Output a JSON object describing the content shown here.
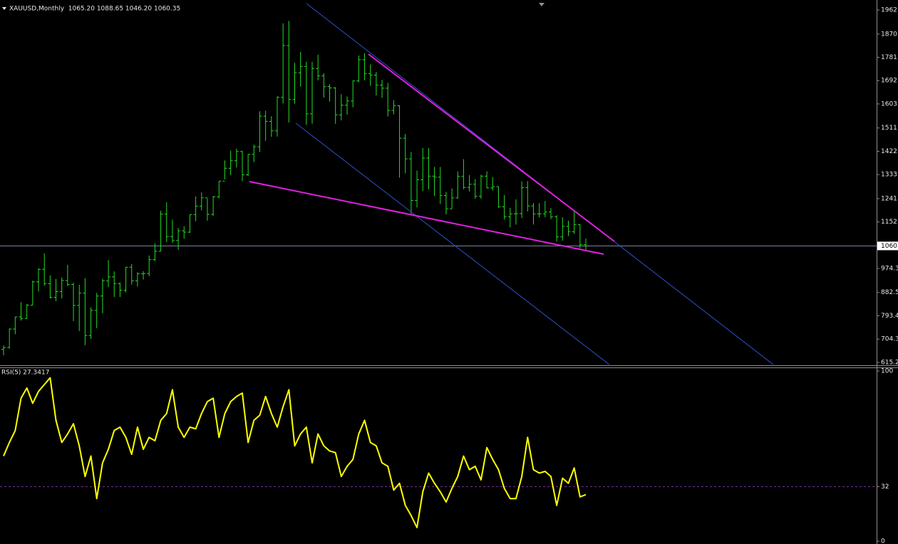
{
  "chart_data": [
    {
      "type": "ohlc",
      "title": "XAUUSD,Monthly  1065.20 1088.65 1046.20 1060.35",
      "color": "#22dd22",
      "open": [
        665,
        672,
        743,
        789,
        783,
        834,
        923,
        971,
        916,
        864,
        886,
        928,
        913,
        833,
        880,
        718,
        814,
        869,
        927,
        942,
        916,
        891,
        979,
        927,
        954,
        955,
        1008,
        1040,
        1182,
        1096,
        1081,
        1118,
        1113,
        1180,
        1212,
        1244,
        1181,
        1248,
        1308,
        1357,
        1386,
        1421,
        1332,
        1410,
        1439,
        1556,
        1536,
        1500,
        1628,
        1826,
        1620,
        1722,
        1746,
        1565,
        1738,
        1710,
        1669,
        1664,
        1561,
        1598,
        1614,
        1691,
        1772,
        1719,
        1713,
        1675,
        1663,
        1578,
        1596,
        1472,
        1393,
        1234,
        1313,
        1396,
        1327,
        1323,
        1253,
        1202,
        1244,
        1326,
        1284,
        1296,
        1250,
        1327,
        1282,
        1287,
        1210,
        1172,
        1183,
        1184,
        1283,
        1213,
        1183,
        1183,
        1190,
        1172,
        1095,
        1135,
        1115,
        1142,
        1065.2
      ],
      "high": [
        680,
        745,
        790,
        845,
        838,
        928,
        975,
        1032,
        948,
        934,
        940,
        988,
        920,
        912,
        937,
        826,
        881,
        935,
        1006,
        963,
        921,
        980,
        991,
        960,
        964,
        1024,
        1070,
        1195,
        1227,
        1161,
        1129,
        1135,
        1180,
        1249,
        1265,
        1242,
        1251,
        1308,
        1387,
        1424,
        1432,
        1424,
        1411,
        1447,
        1575,
        1577,
        1556,
        1632,
        1911,
        1920,
        1760,
        1802,
        1764,
        1764,
        1791,
        1720,
        1678,
        1667,
        1640,
        1631,
        1693,
        1788,
        1797,
        1754,
        1725,
        1695,
        1683,
        1617,
        1598,
        1488,
        1419,
        1348,
        1434,
        1434,
        1362,
        1362,
        1267,
        1280,
        1345,
        1392,
        1331,
        1315,
        1332,
        1345,
        1324,
        1288,
        1255,
        1206,
        1238,
        1307,
        1308,
        1224,
        1224,
        1232,
        1205,
        1178,
        1170,
        1157,
        1191,
        1143,
        1088.65
      ],
      "low": [
        642,
        668,
        723,
        775,
        782,
        834,
        886,
        908,
        859,
        850,
        860,
        906,
        773,
        735,
        681,
        705,
        746,
        803,
        903,
        865,
        865,
        883,
        913,
        905,
        932,
        945,
        1002,
        1040,
        1075,
        1072,
        1045,
        1088,
        1110,
        1155,
        1196,
        1157,
        1175,
        1242,
        1315,
        1331,
        1360,
        1308,
        1328,
        1381,
        1419,
        1462,
        1477,
        1478,
        1604,
        1532,
        1604,
        1669,
        1523,
        1527,
        1693,
        1627,
        1612,
        1527,
        1540,
        1562,
        1590,
        1686,
        1693,
        1672,
        1635,
        1626,
        1555,
        1563,
        1321,
        1338,
        1180,
        1207,
        1270,
        1276,
        1251,
        1221,
        1180,
        1202,
        1241,
        1277,
        1268,
        1240,
        1240,
        1280,
        1272,
        1206,
        1161,
        1131,
        1142,
        1167,
        1192,
        1142,
        1169,
        1170,
        1162,
        1077,
        1080,
        1098,
        1106,
        1052,
        1046.2
      ],
      "close": [
        672,
        743,
        789,
        783,
        834,
        923,
        971,
        916,
        864,
        886,
        928,
        913,
        833,
        880,
        718,
        814,
        869,
        927,
        942,
        916,
        891,
        979,
        927,
        954,
        955,
        1008,
        1040,
        1182,
        1096,
        1081,
        1118,
        1113,
        1180,
        1212,
        1244,
        1181,
        1248,
        1308,
        1357,
        1386,
        1421,
        1332,
        1410,
        1439,
        1556,
        1536,
        1500,
        1628,
        1826,
        1620,
        1722,
        1746,
        1565,
        1738,
        1710,
        1669,
        1664,
        1561,
        1598,
        1614,
        1691,
        1772,
        1719,
        1713,
        1675,
        1663,
        1578,
        1596,
        1472,
        1393,
        1234,
        1313,
        1396,
        1327,
        1323,
        1253,
        1202,
        1244,
        1326,
        1284,
        1296,
        1250,
        1327,
        1282,
        1287,
        1210,
        1172,
        1183,
        1184,
        1283,
        1213,
        1183,
        1183,
        1190,
        1172,
        1095,
        1135,
        1115,
        1142,
        1065.2,
        1060.35
      ],
      "ylim": [
        604.3,
        2000
      ],
      "yticks": [
        615.2,
        704.3,
        793.4,
        882.5,
        974.3,
        {
          "value": 1152,
          "label": "1152."
        },
        {
          "value": 1241,
          "label": "1241."
        },
        {
          "value": 1333,
          "label": "1333."
        },
        {
          "value": 1422,
          "label": "1422."
        },
        {
          "value": 1511,
          "label": "1511."
        },
        {
          "value": 1603,
          "label": "1603."
        },
        {
          "value": 1692,
          "label": "1692."
        },
        {
          "value": 1781,
          "label": "1781."
        },
        {
          "value": 1870,
          "label": "1870."
        },
        {
          "value": 1962,
          "label": "1962."
        }
      ],
      "price_line": {
        "value": 1060.35,
        "label": "1060."
      }
    },
    {
      "type": "line",
      "title": "RSI(5) 27.3417",
      "color": "#ffff00",
      "values": [
        50,
        58,
        65,
        84,
        90,
        81,
        88,
        92,
        96,
        71,
        58,
        63,
        69,
        56,
        38,
        50,
        25,
        46,
        54,
        65,
        67,
        61,
        51,
        67,
        54,
        61,
        59,
        71,
        75,
        89,
        67,
        61,
        67,
        66,
        75,
        82,
        84,
        61,
        75,
        82,
        85,
        87,
        58,
        71,
        74,
        85,
        75,
        67,
        79,
        89,
        56,
        63,
        67,
        46,
        63,
        56,
        53,
        52,
        38,
        44,
        48,
        63,
        71,
        58,
        56,
        46,
        44,
        30,
        34,
        21,
        15,
        8,
        29,
        40,
        34,
        29,
        23,
        31,
        38,
        50,
        42,
        44,
        36,
        55,
        48,
        42,
        31,
        25,
        25,
        38,
        61,
        42,
        40,
        41,
        38,
        21,
        37,
        34,
        43,
        26,
        27.3417
      ],
      "ylim": [
        0,
        100
      ],
      "yticks": [
        0,
        32,
        100
      ],
      "levels": [
        32
      ]
    }
  ]
}
